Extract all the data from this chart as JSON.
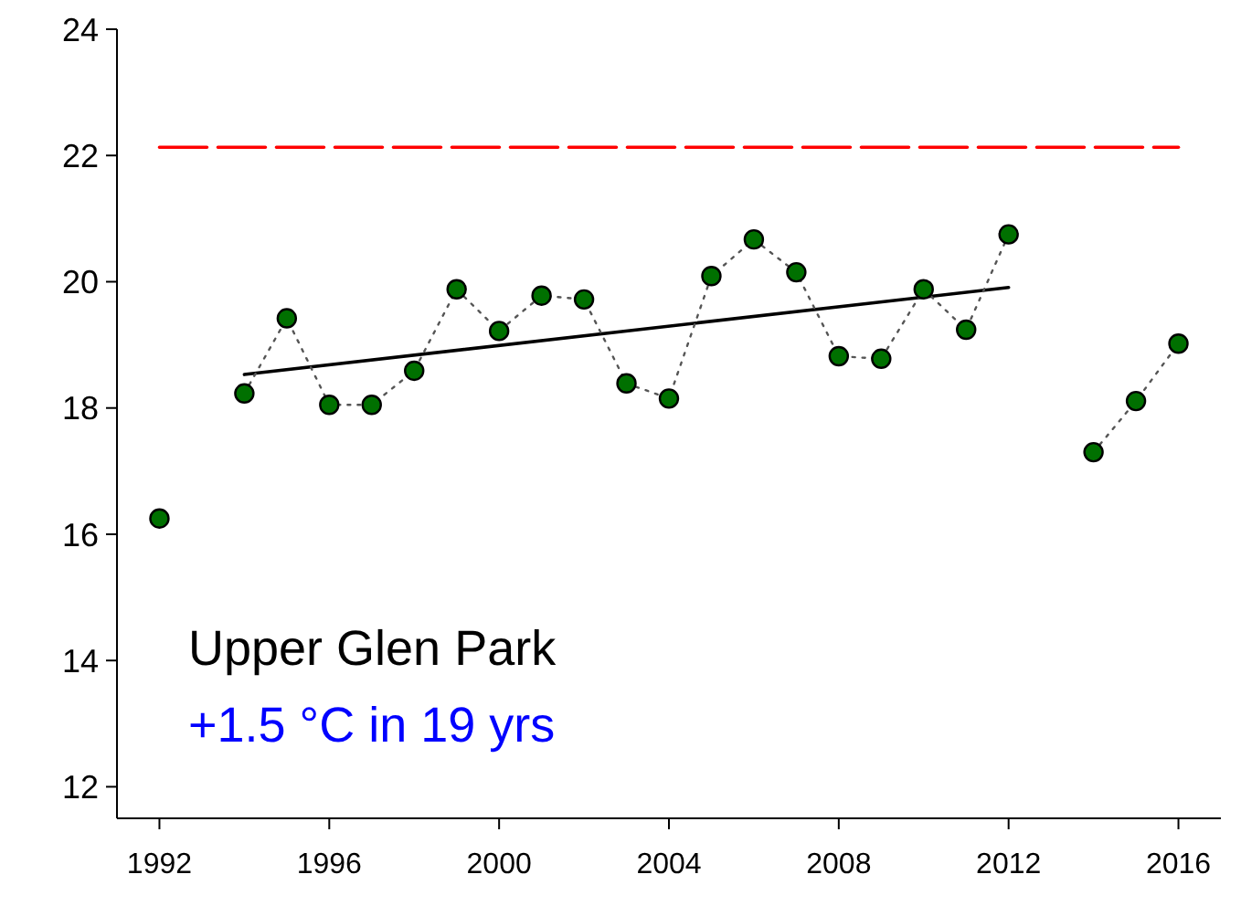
{
  "chart_data": {
    "type": "line",
    "x": [
      1992,
      1993,
      1994,
      1995,
      1996,
      1997,
      1998,
      1999,
      2000,
      2001,
      2002,
      2003,
      2004,
      2005,
      2006,
      2007,
      2008,
      2009,
      2010,
      2011,
      2012,
      2013,
      2014,
      2015,
      2016
    ],
    "series": [
      {
        "color": "#ff0000",
        "line_style": "dashed",
        "marker": "none",
        "x": [
          1992,
          2016
        ],
        "values": [
          22.13,
          22.13
        ]
      },
      {
        "color": "#000000",
        "line_style": "solid",
        "marker": "none",
        "x": [
          1994,
          2012
        ],
        "values": [
          18.53,
          19.91
        ]
      },
      {
        "color": "#007000",
        "line_style": "dotted",
        "marker": "circle",
        "values": [
          16.25,
          null,
          18.23,
          19.42,
          18.05,
          18.05,
          18.59,
          19.88,
          19.22,
          19.78,
          19.72,
          18.39,
          18.15,
          20.09,
          20.67,
          20.15,
          18.82,
          18.78,
          19.88,
          19.24,
          20.75,
          null,
          17.3,
          18.11,
          19.02
        ]
      }
    ],
    "xlim": [
      1991,
      2017
    ],
    "xticks": [
      1992,
      1996,
      2000,
      2004,
      2008,
      2012,
      2016
    ],
    "ylim": [
      11.5,
      24
    ],
    "yticks": [
      12,
      14,
      16,
      18,
      20,
      22,
      24
    ],
    "grid": false,
    "annotations": [
      "Upper Glen Park",
      "+1.5 °C in 19 yrs"
    ]
  }
}
